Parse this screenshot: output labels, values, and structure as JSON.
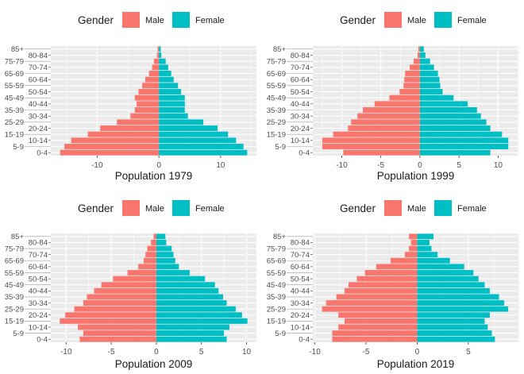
{
  "chart_data": [
    {
      "type": "bar",
      "orientation": "horizontal",
      "xlabel": "Population 1979",
      "legend": {
        "title": "Gender",
        "placement": "top",
        "entries": [
          "Male",
          "Female"
        ]
      },
      "categories": [
        "0-4",
        "5-9",
        "10-14",
        "15-19",
        "20-24",
        "25-29",
        "30-34",
        "35-39",
        "40-44",
        "45-49",
        "50-54",
        "55-59",
        "60-64",
        "65-69",
        "70-74",
        "75-79",
        "80-84",
        "85+"
      ],
      "xlim": [
        -17.5,
        15.8
      ],
      "xticks": [
        -10,
        0,
        10
      ],
      "series": [
        {
          "name": "Male",
          "values": [
            -16.0,
            -15.3,
            -14.2,
            -11.5,
            -9.5,
            -6.8,
            -4.6,
            -3.9,
            -3.6,
            -3.9,
            -3.3,
            -2.7,
            -2.2,
            -1.6,
            -1.1,
            -0.8,
            -0.3,
            -0.2
          ]
        },
        {
          "name": "Female",
          "values": [
            14.3,
            13.7,
            12.5,
            11.2,
            9.5,
            7.2,
            4.7,
            4.2,
            4.2,
            4.2,
            3.6,
            3.1,
            2.4,
            2.0,
            1.5,
            1.1,
            0.4,
            0.3
          ]
        }
      ]
    },
    {
      "type": "bar",
      "orientation": "horizontal",
      "xlabel": "Population 1999",
      "legend": {
        "title": "Gender",
        "placement": "top",
        "entries": [
          "Male",
          "Female"
        ]
      },
      "categories": [
        "0-4",
        "5-9",
        "10-14",
        "15-19",
        "20-24",
        "25-29",
        "30-34",
        "35-39",
        "40-44",
        "45-49",
        "50-54",
        "55-59",
        "60-64",
        "65-69",
        "70-74",
        "75-79",
        "80-84",
        "85+"
      ],
      "xlim": [
        -13.7,
        12.6
      ],
      "xticks": [
        -10,
        -5,
        0,
        5,
        10
      ],
      "series": [
        {
          "name": "Male",
          "values": [
            -9.8,
            -12.5,
            -12.5,
            -11.1,
            -9.2,
            -8.8,
            -8.0,
            -7.3,
            -5.8,
            -3.9,
            -2.6,
            -2.1,
            -2.0,
            -1.9,
            -1.3,
            -0.8,
            -0.3,
            -0.2
          ]
        },
        {
          "name": "Female",
          "values": [
            9.0,
            11.3,
            11.3,
            10.5,
            9.0,
            8.5,
            7.8,
            7.3,
            6.1,
            4.3,
            2.9,
            2.6,
            2.5,
            2.3,
            1.8,
            1.3,
            0.7,
            0.5
          ]
        }
      ]
    },
    {
      "type": "bar",
      "orientation": "horizontal",
      "xlabel": "Population 2009",
      "legend": {
        "title": "Gender",
        "placement": "top",
        "entries": [
          "Male",
          "Female"
        ]
      },
      "categories": [
        "0-4",
        "5-9",
        "10-14",
        "15-19",
        "20-24",
        "25-29",
        "30-34",
        "35-39",
        "40-44",
        "45-49",
        "50-54",
        "55-59",
        "60-64",
        "65-69",
        "70-74",
        "75-79",
        "80-84",
        "85+"
      ],
      "xlim": [
        -11.7,
        11.1
      ],
      "xticks": [
        -10,
        -5,
        0,
        5,
        10
      ],
      "series": [
        {
          "name": "Male",
          "values": [
            -8.5,
            -8.1,
            -8.7,
            -10.7,
            -10.1,
            -9.1,
            -8.1,
            -7.7,
            -6.9,
            -6.1,
            -4.8,
            -3.2,
            -2.0,
            -1.4,
            -1.2,
            -1.0,
            -0.6,
            -0.3
          ]
        },
        {
          "name": "Female",
          "values": [
            7.8,
            7.5,
            8.1,
            10.1,
            9.5,
            8.8,
            7.8,
            7.4,
            6.9,
            6.5,
            5.4,
            3.7,
            2.5,
            2.1,
            1.9,
            1.7,
            1.1,
            1.0
          ]
        }
      ]
    },
    {
      "type": "bar",
      "orientation": "horizontal",
      "xlabel": "Population 2019",
      "legend": {
        "title": "Gender",
        "placement": "top",
        "entries": [
          "Male",
          "Female"
        ]
      },
      "categories": [
        "0-4",
        "5-9",
        "10-14",
        "15-19",
        "20-24",
        "25-29",
        "30-34",
        "35-39",
        "40-44",
        "45-49",
        "50-54",
        "55-59",
        "60-64",
        "65-69",
        "70-74",
        "75-79",
        "80-84",
        "85+"
      ],
      "xlim": [
        -10.2,
        9.9
      ],
      "xticks": [
        -10,
        -5,
        0,
        5
      ],
      "series": [
        {
          "name": "Male",
          "values": [
            -8.3,
            -8.3,
            -7.7,
            -7.1,
            -7.7,
            -9.3,
            -8.9,
            -7.9,
            -7.1,
            -6.7,
            -5.9,
            -5.1,
            -4.0,
            -2.6,
            -1.2,
            -0.8,
            -0.6,
            -0.8
          ]
        },
        {
          "name": "Female",
          "values": [
            7.6,
            7.3,
            6.9,
            6.6,
            7.1,
            8.9,
            8.5,
            8.0,
            7.1,
            6.6,
            6.0,
            5.5,
            4.6,
            3.2,
            2.0,
            1.4,
            1.2,
            1.6
          ]
        }
      ]
    }
  ],
  "colors": {
    "Male": "#F8766D",
    "Female": "#00BFC4",
    "panel_background": "#EBEBEB",
    "grid": "#FFFFFF"
  }
}
